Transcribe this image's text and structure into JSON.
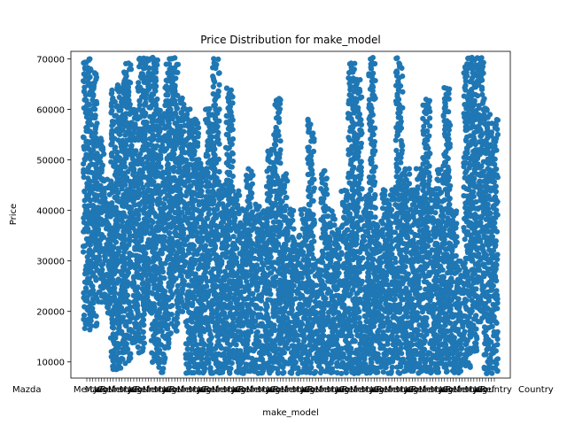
{
  "chart_data": {
    "type": "scatter",
    "title": "Price Distribution for make_model",
    "xlabel": "make_model",
    "ylabel": "Price",
    "ylim": [
      6800,
      71500
    ],
    "yticks": [
      10000,
      20000,
      30000,
      40000,
      50000,
      60000,
      70000
    ],
    "ytick_labels": [
      "10000",
      "20000",
      "30000",
      "40000",
      "50000",
      "60000",
      "70000"
    ],
    "xtick_labels_visible": [
      "Mazda",
      "Mercedes",
      "Country"
    ],
    "xtick_label_fragments": [
      "Merca",
      "Maz",
      "Jag",
      "Ref",
      "Country"
    ],
    "grid": false,
    "legend": "none",
    "color": "#1f77b4",
    "series": [
      {
        "values": [
          {
            "x": 0,
            "ymin": 16500,
            "ymax": 70000
          },
          {
            "x": 1,
            "ymin": 17000,
            "ymax": 68000
          },
          {
            "x": 2,
            "ymin": 22000,
            "ymax": 54000
          },
          {
            "x": 3,
            "ymin": 20000,
            "ymax": 46000
          },
          {
            "x": 4,
            "ymin": 8500,
            "ymax": 64000
          },
          {
            "x": 5,
            "ymin": 9000,
            "ymax": 65000
          },
          {
            "x": 6,
            "ymin": 10000,
            "ymax": 69000
          },
          {
            "x": 7,
            "ymin": 14000,
            "ymax": 60000
          },
          {
            "x": 8,
            "ymin": 12000,
            "ymax": 70000
          },
          {
            "x": 9,
            "ymin": 20000,
            "ymax": 70000
          },
          {
            "x": 10,
            "ymin": 10000,
            "ymax": 70000
          },
          {
            "x": 11,
            "ymin": 8000,
            "ymax": 60000
          },
          {
            "x": 12,
            "ymin": 13000,
            "ymax": 70000
          },
          {
            "x": 13,
            "ymin": 16000,
            "ymax": 70000
          },
          {
            "x": 14,
            "ymin": 20000,
            "ymax": 62000
          },
          {
            "x": 15,
            "ymin": 8000,
            "ymax": 60000
          },
          {
            "x": 16,
            "ymin": 8000,
            "ymax": 58000
          },
          {
            "x": 17,
            "ymin": 8000,
            "ymax": 49000
          },
          {
            "x": 18,
            "ymin": 8000,
            "ymax": 60000
          },
          {
            "x": 19,
            "ymin": 8000,
            "ymax": 70000
          },
          {
            "x": 20,
            "ymin": 8000,
            "ymax": 45000
          },
          {
            "x": 21,
            "ymin": 8000,
            "ymax": 64000
          },
          {
            "x": 22,
            "ymin": 8000,
            "ymax": 44000
          },
          {
            "x": 23,
            "ymin": 8000,
            "ymax": 40000
          },
          {
            "x": 24,
            "ymin": 8000,
            "ymax": 48000
          },
          {
            "x": 25,
            "ymin": 8000,
            "ymax": 41000
          },
          {
            "x": 26,
            "ymin": 8000,
            "ymax": 40000
          },
          {
            "x": 27,
            "ymin": 8000,
            "ymax": 52000
          },
          {
            "x": 28,
            "ymin": 8000,
            "ymax": 62000
          },
          {
            "x": 29,
            "ymin": 8000,
            "ymax": 47000
          },
          {
            "x": 30,
            "ymin": 8000,
            "ymax": 40000
          },
          {
            "x": 31,
            "ymin": 8000,
            "ymax": 35000
          },
          {
            "x": 32,
            "ymin": 8000,
            "ymax": 40000
          },
          {
            "x": 33,
            "ymin": 8000,
            "ymax": 58000
          },
          {
            "x": 34,
            "ymin": 8000,
            "ymax": 30000
          },
          {
            "x": 35,
            "ymin": 8000,
            "ymax": 48000
          },
          {
            "x": 36,
            "ymin": 8000,
            "ymax": 40000
          },
          {
            "x": 37,
            "ymin": 8000,
            "ymax": 36000
          },
          {
            "x": 38,
            "ymin": 8000,
            "ymax": 44000
          },
          {
            "x": 39,
            "ymin": 8000,
            "ymax": 69000
          },
          {
            "x": 40,
            "ymin": 8000,
            "ymax": 66000
          },
          {
            "x": 41,
            "ymin": 8000,
            "ymax": 43000
          },
          {
            "x": 42,
            "ymin": 8000,
            "ymax": 70000
          },
          {
            "x": 43,
            "ymin": 8000,
            "ymax": 38000
          },
          {
            "x": 44,
            "ymin": 8000,
            "ymax": 44000
          },
          {
            "x": 45,
            "ymin": 8000,
            "ymax": 44000
          },
          {
            "x": 46,
            "ymin": 8000,
            "ymax": 70000
          },
          {
            "x": 47,
            "ymin": 8000,
            "ymax": 48000
          },
          {
            "x": 48,
            "ymin": 8000,
            "ymax": 44000
          },
          {
            "x": 49,
            "ymin": 8000,
            "ymax": 48000
          },
          {
            "x": 50,
            "ymin": 8000,
            "ymax": 62000
          },
          {
            "x": 51,
            "ymin": 8000,
            "ymax": 44000
          },
          {
            "x": 52,
            "ymin": 8000,
            "ymax": 48000
          },
          {
            "x": 53,
            "ymin": 8000,
            "ymax": 64000
          },
          {
            "x": 54,
            "ymin": 8000,
            "ymax": 40000
          },
          {
            "x": 55,
            "ymin": 8000,
            "ymax": 30000
          },
          {
            "x": 56,
            "ymin": 9000,
            "ymax": 70000
          },
          {
            "x": 57,
            "ymin": 12000,
            "ymax": 70000
          },
          {
            "x": 58,
            "ymin": 18000,
            "ymax": 70000
          },
          {
            "x": 59,
            "ymin": 8000,
            "ymax": 60000
          },
          {
            "x": 60,
            "ymin": 8000,
            "ymax": 58000
          }
        ]
      }
    ]
  }
}
